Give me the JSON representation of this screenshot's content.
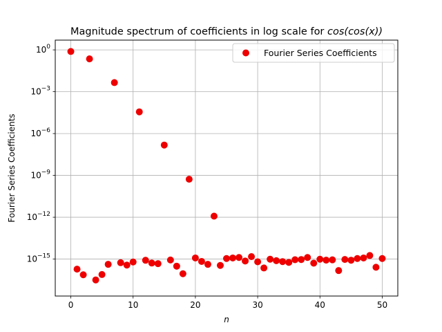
{
  "chart_data": {
    "type": "scatter",
    "title_plain": "Magnitude spectrum of coefficients in log scale for ",
    "title_math": "cos(cos(x))",
    "xlabel": "n",
    "ylabel": "Fourier Series Coefficients",
    "yscale": "log",
    "xlim": [
      -2.5,
      52.5
    ],
    "ylim_log10": [
      -17.65,
      0.7
    ],
    "xticks": [
      0,
      10,
      20,
      30,
      40,
      50
    ],
    "xtick_labels": [
      "0",
      "10",
      "20",
      "30",
      "40",
      "50"
    ],
    "yticks_log10": [
      0,
      -3,
      -6,
      -9,
      -12,
      -15
    ],
    "ytick_labels": [
      "0",
      "−3",
      "−6",
      "−9",
      "−12",
      "−15"
    ],
    "ytick_base": "10",
    "grid": true,
    "legend_position": "top-right",
    "marker_color": "#ee0000",
    "series": [
      {
        "name": "Fourier Series Coefficients",
        "x": [
          0,
          1,
          2,
          3,
          4,
          5,
          6,
          7,
          8,
          9,
          10,
          11,
          12,
          13,
          14,
          15,
          16,
          17,
          18,
          19,
          20,
          21,
          22,
          23,
          24,
          25,
          26,
          27,
          28,
          29,
          30,
          31,
          32,
          33,
          34,
          35,
          36,
          37,
          38,
          39,
          40,
          41,
          42,
          43,
          44,
          45,
          46,
          47,
          48,
          49,
          50
        ],
        "y": [
          0.77,
          1.9e-16,
          7.5e-17,
          0.226,
          3.2e-17,
          7.8e-17,
          4.2e-16,
          0.0045,
          5.5e-16,
          3.7e-16,
          6.2e-16,
          3.6e-05,
          8.2e-16,
          5.2e-16,
          4.7e-16,
          1.5e-07,
          8.6e-16,
          3.1e-16,
          8.9e-17,
          5.3e-10,
          1.2e-15,
          6.8e-16,
          4.2e-16,
          1.2e-12,
          3.5e-16,
          1.1e-15,
          1.2e-15,
          1.3e-15,
          7.3e-16,
          1.5e-15,
          6.4e-16,
          2.3e-16,
          9.8e-16,
          7.7e-16,
          6.6e-16,
          5.8e-16,
          9e-16,
          9.3e-16,
          1.3e-15,
          5.1e-16,
          9.8e-16,
          8.4e-16,
          8.8e-16,
          1.5e-16,
          9.4e-16,
          8.3e-16,
          1.1e-15,
          1.2e-15,
          1.8e-15,
          2.6e-16,
          1.1e-15
        ]
      }
    ]
  }
}
